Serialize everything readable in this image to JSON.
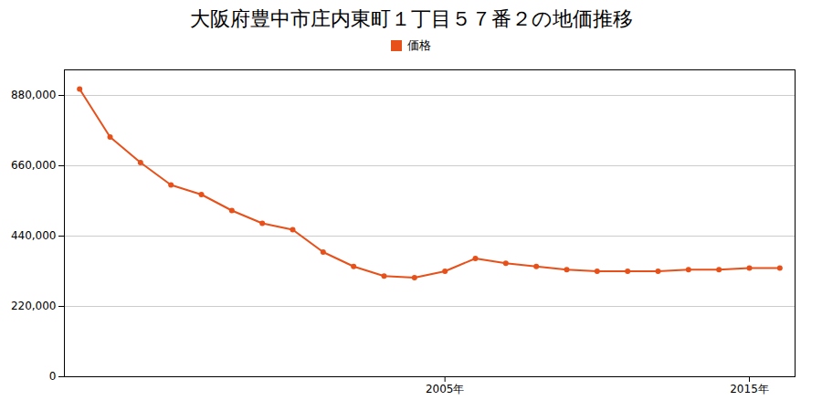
{
  "chart_data": {
    "type": "line",
    "title": "大阪府豊中市庄内東町１丁目５７番２の地価推移",
    "x": [
      1993,
      1994,
      1995,
      1996,
      1997,
      1998,
      1999,
      2000,
      2001,
      2002,
      2003,
      2004,
      2005,
      2006,
      2007,
      2008,
      2009,
      2010,
      2011,
      2012,
      2013,
      2014,
      2015,
      2016
    ],
    "series": [
      {
        "name": "価格",
        "color": "#e8501a",
        "marker": "circle",
        "values": [
          900000,
          750000,
          670000,
          600000,
          570000,
          520000,
          480000,
          460000,
          390000,
          345000,
          315000,
          310000,
          330000,
          370000,
          355000,
          345000,
          335000,
          330000,
          330000,
          330000,
          335000,
          335000,
          340000,
          340000
        ]
      }
    ],
    "xlim": [
      1992.5,
      2016.5
    ],
    "xticks": [
      {
        "value": 2005,
        "label": "2005年"
      },
      {
        "value": 2015,
        "label": "2015年"
      }
    ],
    "ylim": [
      0,
      960000
    ],
    "yticks": [
      0,
      {
        "value": 220000,
        "label": "220,000"
      },
      {
        "value": 440000,
        "label": "440,000"
      },
      {
        "value": 660000,
        "label": "660,000"
      },
      {
        "value": 880000,
        "label": "880,000"
      }
    ],
    "grid": true,
    "legend": "top"
  }
}
